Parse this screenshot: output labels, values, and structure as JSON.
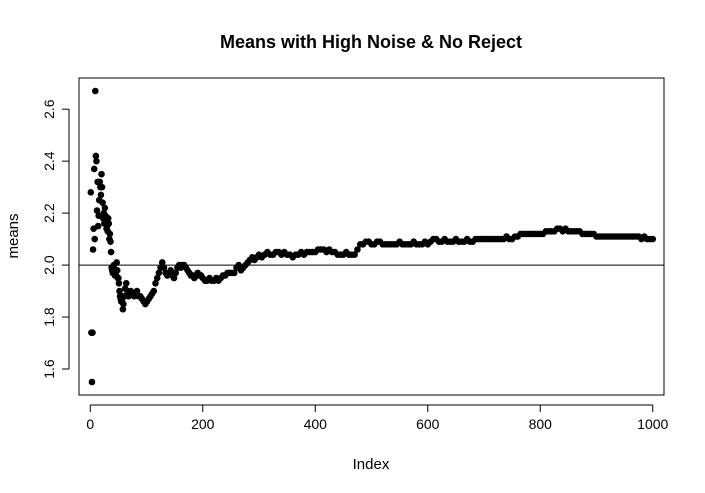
{
  "chart_data": {
    "type": "scatter",
    "title": "Means with High Noise & No Reject",
    "xlabel": "Index",
    "ylabel": "means",
    "xlim": [
      -20,
      1020
    ],
    "ylim": [
      1.5,
      2.72
    ],
    "xticks": [
      0,
      200,
      400,
      600,
      800,
      1000
    ],
    "xtick_labels": [
      "0",
      "200",
      "400",
      "600",
      "800",
      "1000"
    ],
    "yticks": [
      1.6,
      1.8,
      2.0,
      2.2,
      2.4,
      2.6
    ],
    "ytick_labels": [
      "1.6",
      "1.8",
      "2.0",
      "2.2",
      "2.4",
      "2.6"
    ],
    "reference_line": {
      "y": 2.0
    },
    "grid": false,
    "marker_color": "#000000",
    "series": [
      {
        "points": [
          [
            1,
            2.28
          ],
          [
            2,
            1.74
          ],
          [
            3,
            1.55
          ],
          [
            4,
            1.74
          ],
          [
            5,
            2.06
          ],
          [
            6,
            2.14
          ],
          [
            7,
            2.37
          ],
          [
            8,
            2.1
          ],
          [
            9,
            2.67
          ],
          [
            10,
            2.42
          ],
          [
            11,
            2.4
          ],
          [
            12,
            2.21
          ],
          [
            13,
            2.32
          ],
          [
            14,
            2.15
          ],
          [
            15,
            2.19
          ],
          [
            16,
            2.25
          ],
          [
            17,
            2.32
          ],
          [
            18,
            2.3
          ],
          [
            19,
            2.27
          ],
          [
            20,
            2.35
          ],
          [
            21,
            2.3
          ],
          [
            22,
            2.24
          ],
          [
            23,
            2.18
          ],
          [
            24,
            2.2
          ],
          [
            25,
            2.16
          ],
          [
            26,
            2.22
          ],
          [
            27,
            2.19
          ],
          [
            28,
            2.17
          ],
          [
            29,
            2.14
          ],
          [
            30,
            2.15
          ],
          [
            31,
            2.13
          ],
          [
            32,
            2.18
          ],
          [
            33,
            2.16
          ],
          [
            34,
            2.1
          ],
          [
            35,
            2.12
          ],
          [
            36,
            2.09
          ],
          [
            37,
            2.05
          ],
          [
            38,
            1.99
          ],
          [
            39,
            1.98
          ],
          [
            40,
            1.97
          ],
          [
            41,
            1.99
          ],
          [
            42,
            2.0
          ],
          [
            43,
            1.98
          ],
          [
            44,
            1.96
          ],
          [
            45,
            1.97
          ],
          [
            46,
            1.96
          ],
          [
            47,
            2.01
          ],
          [
            48,
            1.98
          ],
          [
            49,
            1.95
          ],
          [
            50,
            1.95
          ],
          [
            51,
            1.93
          ],
          [
            52,
            1.9
          ],
          [
            53,
            1.88
          ],
          [
            54,
            1.87
          ],
          [
            55,
            1.86
          ],
          [
            56,
            1.88
          ],
          [
            57,
            1.87
          ],
          [
            58,
            1.83
          ],
          [
            59,
            1.85
          ],
          [
            60,
            1.88
          ],
          [
            62,
            1.91
          ],
          [
            64,
            1.93
          ],
          [
            66,
            1.9
          ],
          [
            68,
            1.88
          ],
          [
            70,
            1.89
          ],
          [
            72,
            1.9
          ],
          [
            74,
            1.89
          ],
          [
            76,
            1.89
          ],
          [
            78,
            1.88
          ],
          [
            80,
            1.89
          ],
          [
            83,
            1.9
          ],
          [
            86,
            1.88
          ],
          [
            89,
            1.88
          ],
          [
            92,
            1.87
          ],
          [
            95,
            1.86
          ],
          [
            98,
            1.85
          ],
          [
            101,
            1.86
          ],
          [
            104,
            1.87
          ],
          [
            107,
            1.88
          ],
          [
            110,
            1.89
          ],
          [
            113,
            1.9
          ],
          [
            116,
            1.93
          ],
          [
            119,
            1.95
          ],
          [
            122,
            1.97
          ],
          [
            125,
            1.99
          ],
          [
            128,
            2.01
          ],
          [
            131,
            1.99
          ],
          [
            134,
            1.97
          ],
          [
            137,
            1.96
          ],
          [
            140,
            1.97
          ],
          [
            143,
            1.98
          ],
          [
            146,
            1.96
          ],
          [
            149,
            1.95
          ],
          [
            152,
            1.97
          ],
          [
            155,
            1.99
          ],
          [
            158,
            2.0
          ],
          [
            161,
            1.99
          ],
          [
            164,
            2.0
          ],
          [
            167,
            2.0
          ],
          [
            170,
            1.99
          ],
          [
            173,
            1.98
          ],
          [
            176,
            1.97
          ],
          [
            179,
            1.96
          ],
          [
            182,
            1.96
          ],
          [
            185,
            1.95
          ],
          [
            188,
            1.96
          ],
          [
            191,
            1.97
          ],
          [
            194,
            1.96
          ],
          [
            197,
            1.96
          ],
          [
            200,
            1.95
          ],
          [
            204,
            1.94
          ],
          [
            208,
            1.94
          ],
          [
            212,
            1.95
          ],
          [
            216,
            1.94
          ],
          [
            220,
            1.94
          ],
          [
            224,
            1.95
          ],
          [
            228,
            1.94
          ],
          [
            232,
            1.95
          ],
          [
            236,
            1.96
          ],
          [
            240,
            1.96
          ],
          [
            244,
            1.97
          ],
          [
            248,
            1.97
          ],
          [
            252,
            1.97
          ],
          [
            256,
            1.97
          ],
          [
            260,
            1.99
          ],
          [
            264,
            2.0
          ],
          [
            268,
            1.98
          ],
          [
            272,
            1.99
          ],
          [
            276,
            2.0
          ],
          [
            280,
            2.01
          ],
          [
            284,
            2.02
          ],
          [
            288,
            2.03
          ],
          [
            292,
            2.02
          ],
          [
            296,
            2.03
          ],
          [
            300,
            2.04
          ],
          [
            305,
            2.03
          ],
          [
            310,
            2.04
          ],
          [
            315,
            2.05
          ],
          [
            320,
            2.04
          ],
          [
            325,
            2.04
          ],
          [
            330,
            2.05
          ],
          [
            335,
            2.05
          ],
          [
            340,
            2.04
          ],
          [
            345,
            2.05
          ],
          [
            350,
            2.04
          ],
          [
            355,
            2.04
          ],
          [
            360,
            2.03
          ],
          [
            365,
            2.04
          ],
          [
            370,
            2.04
          ],
          [
            375,
            2.05
          ],
          [
            380,
            2.04
          ],
          [
            385,
            2.05
          ],
          [
            390,
            2.05
          ],
          [
            395,
            2.05
          ],
          [
            400,
            2.05
          ],
          [
            405,
            2.06
          ],
          [
            410,
            2.06
          ],
          [
            415,
            2.06
          ],
          [
            420,
            2.05
          ],
          [
            425,
            2.06
          ],
          [
            430,
            2.05
          ],
          [
            435,
            2.05
          ],
          [
            440,
            2.04
          ],
          [
            445,
            2.04
          ],
          [
            450,
            2.04
          ],
          [
            455,
            2.05
          ],
          [
            460,
            2.04
          ],
          [
            465,
            2.04
          ],
          [
            470,
            2.04
          ],
          [
            475,
            2.06
          ],
          [
            480,
            2.08
          ],
          [
            485,
            2.08
          ],
          [
            490,
            2.09
          ],
          [
            495,
            2.09
          ],
          [
            500,
            2.08
          ],
          [
            505,
            2.08
          ],
          [
            510,
            2.09
          ],
          [
            515,
            2.09
          ],
          [
            520,
            2.08
          ],
          [
            525,
            2.08
          ],
          [
            530,
            2.08
          ],
          [
            535,
            2.08
          ],
          [
            540,
            2.08
          ],
          [
            545,
            2.08
          ],
          [
            550,
            2.09
          ],
          [
            555,
            2.08
          ],
          [
            560,
            2.08
          ],
          [
            565,
            2.08
          ],
          [
            570,
            2.08
          ],
          [
            575,
            2.09
          ],
          [
            580,
            2.08
          ],
          [
            585,
            2.08
          ],
          [
            590,
            2.08
          ],
          [
            595,
            2.09
          ],
          [
            600,
            2.08
          ],
          [
            605,
            2.09
          ],
          [
            610,
            2.1
          ],
          [
            615,
            2.1
          ],
          [
            620,
            2.09
          ],
          [
            625,
            2.09
          ],
          [
            630,
            2.1
          ],
          [
            635,
            2.09
          ],
          [
            640,
            2.09
          ],
          [
            645,
            2.09
          ],
          [
            650,
            2.1
          ],
          [
            655,
            2.09
          ],
          [
            660,
            2.09
          ],
          [
            665,
            2.09
          ],
          [
            670,
            2.1
          ],
          [
            675,
            2.09
          ],
          [
            680,
            2.09
          ],
          [
            685,
            2.1
          ],
          [
            690,
            2.1
          ],
          [
            695,
            2.1
          ],
          [
            700,
            2.1
          ],
          [
            705,
            2.1
          ],
          [
            710,
            2.1
          ],
          [
            715,
            2.1
          ],
          [
            720,
            2.1
          ],
          [
            725,
            2.1
          ],
          [
            730,
            2.1
          ],
          [
            735,
            2.1
          ],
          [
            740,
            2.11
          ],
          [
            745,
            2.1
          ],
          [
            750,
            2.1
          ],
          [
            755,
            2.11
          ],
          [
            760,
            2.11
          ],
          [
            765,
            2.12
          ],
          [
            770,
            2.12
          ],
          [
            775,
            2.12
          ],
          [
            780,
            2.12
          ],
          [
            785,
            2.12
          ],
          [
            790,
            2.12
          ],
          [
            795,
            2.12
          ],
          [
            800,
            2.12
          ],
          [
            805,
            2.12
          ],
          [
            810,
            2.13
          ],
          [
            815,
            2.13
          ],
          [
            820,
            2.13
          ],
          [
            825,
            2.13
          ],
          [
            830,
            2.14
          ],
          [
            835,
            2.14
          ],
          [
            840,
            2.13
          ],
          [
            845,
            2.14
          ],
          [
            850,
            2.13
          ],
          [
            855,
            2.13
          ],
          [
            860,
            2.13
          ],
          [
            865,
            2.13
          ],
          [
            870,
            2.13
          ],
          [
            875,
            2.12
          ],
          [
            880,
            2.12
          ],
          [
            885,
            2.12
          ],
          [
            890,
            2.12
          ],
          [
            895,
            2.12
          ],
          [
            900,
            2.11
          ],
          [
            905,
            2.11
          ],
          [
            910,
            2.11
          ],
          [
            915,
            2.11
          ],
          [
            920,
            2.11
          ],
          [
            925,
            2.11
          ],
          [
            930,
            2.11
          ],
          [
            935,
            2.11
          ],
          [
            940,
            2.11
          ],
          [
            945,
            2.11
          ],
          [
            950,
            2.11
          ],
          [
            955,
            2.11
          ],
          [
            960,
            2.11
          ],
          [
            965,
            2.11
          ],
          [
            970,
            2.11
          ],
          [
            975,
            2.11
          ],
          [
            980,
            2.1
          ],
          [
            985,
            2.11
          ],
          [
            990,
            2.1
          ],
          [
            995,
            2.1
          ],
          [
            1000,
            2.1
          ]
        ]
      }
    ]
  }
}
